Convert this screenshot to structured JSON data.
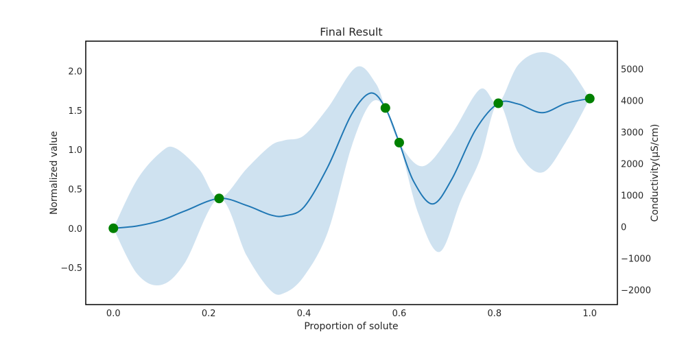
{
  "chart_data": {
    "type": "line",
    "title": "Final Result",
    "xlabel": "Proportion of solute",
    "ylabel": "Normalized value",
    "y2label": "Conductivity(µS/cm)",
    "xlim": [
      -0.058,
      1.058
    ],
    "ylim": [
      -0.97,
      2.38
    ],
    "y2lim": [
      -2472,
      5877
    ],
    "x_ticks": [
      0.0,
      0.2,
      0.4,
      0.6,
      0.8,
      1.0
    ],
    "x_tick_labels": [
      "0.0",
      "0.2",
      "0.4",
      "0.6",
      "0.8",
      "1.0"
    ],
    "y_ticks": [
      -0.5,
      0.0,
      0.5,
      1.0,
      1.5,
      2.0
    ],
    "y_tick_labels": [
      "−0.5",
      "0.0",
      "0.5",
      "1.0",
      "1.5",
      "2.0"
    ],
    "y2_ticks": [
      -2000,
      -1000,
      0,
      1000,
      2000,
      3000,
      4000,
      5000
    ],
    "y2_tick_labels": [
      "−2000",
      "−1000",
      "0",
      "1000",
      "2000",
      "3000",
      "4000",
      "5000"
    ],
    "grid": false,
    "colors": {
      "mean": "#1f77b4",
      "band": "#cfe2f0",
      "points": "#008000",
      "axis": "#000000"
    },
    "points": {
      "x": [
        0.0,
        0.222,
        0.571,
        0.6,
        0.808,
        1.0
      ],
      "y": [
        0.0,
        0.38,
        1.53,
        1.09,
        1.59,
        1.65
      ]
    },
    "mean": {
      "x": [
        0.0,
        0.05,
        0.1,
        0.15,
        0.222,
        0.28,
        0.33,
        0.36,
        0.4,
        0.45,
        0.5,
        0.54,
        0.571,
        0.6,
        0.63,
        0.67,
        0.71,
        0.76,
        0.808,
        0.85,
        0.9,
        0.95,
        1.0
      ],
      "y": [
        0.0,
        0.03,
        0.1,
        0.22,
        0.38,
        0.29,
        0.17,
        0.16,
        0.27,
        0.78,
        1.45,
        1.72,
        1.53,
        1.09,
        0.6,
        0.31,
        0.62,
        1.25,
        1.59,
        1.58,
        1.47,
        1.59,
        1.65
      ]
    },
    "upper": {
      "x": [
        0.0,
        0.05,
        0.1,
        0.13,
        0.18,
        0.222,
        0.28,
        0.33,
        0.36,
        0.4,
        0.45,
        0.51,
        0.55,
        0.571,
        0.6,
        0.65,
        0.71,
        0.77,
        0.808,
        0.85,
        0.9,
        0.95,
        1.0
      ],
      "y": [
        0.0,
        0.62,
        0.97,
        1.02,
        0.75,
        0.38,
        0.76,
        1.05,
        1.12,
        1.18,
        1.53,
        2.05,
        1.85,
        1.53,
        1.09,
        0.79,
        1.2,
        1.77,
        1.59,
        2.08,
        2.24,
        2.09,
        1.65
      ]
    },
    "lower": {
      "x": [
        0.0,
        0.05,
        0.1,
        0.15,
        0.222,
        0.28,
        0.33,
        0.36,
        0.4,
        0.45,
        0.5,
        0.54,
        0.571,
        0.6,
        0.64,
        0.685,
        0.73,
        0.77,
        0.808,
        0.85,
        0.9,
        0.95,
        1.0
      ],
      "y": [
        0.0,
        -0.58,
        -0.72,
        -0.44,
        0.38,
        -0.35,
        -0.79,
        -0.82,
        -0.61,
        -0.05,
        1.04,
        1.59,
        1.53,
        1.09,
        0.19,
        -0.3,
        0.36,
        0.88,
        1.59,
        0.96,
        0.71,
        1.1,
        1.65
      ]
    }
  }
}
